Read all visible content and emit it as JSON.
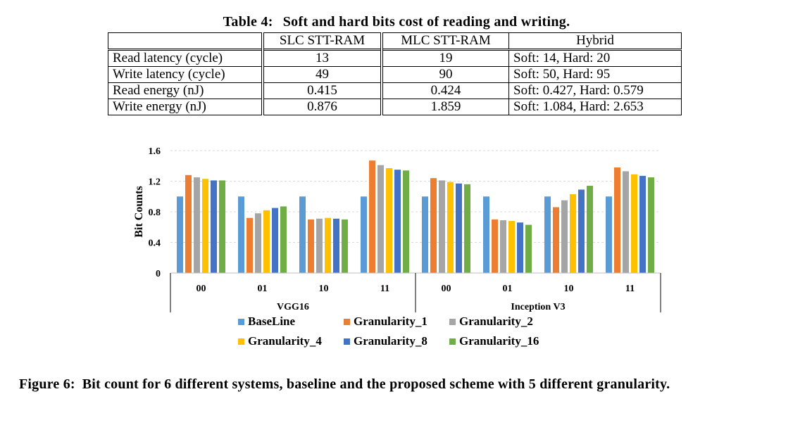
{
  "table": {
    "caption_number": "Table 4:",
    "caption_text": "Soft and hard bits cost of reading and writing.",
    "headers": [
      "",
      "SLC STT-RAM",
      "MLC STT-RAM",
      "Hybrid"
    ],
    "rows": [
      [
        "Read latency (cycle)",
        "13",
        "19",
        "Soft: 14, Hard: 20"
      ],
      [
        "Write latency (cycle)",
        "49",
        "90",
        "Soft: 50, Hard: 95"
      ],
      [
        "Read energy (nJ)",
        "0.415",
        "0.424",
        "Soft: 0.427, Hard: 0.579"
      ],
      [
        "Write energy (nJ)",
        "0.876",
        "1.859",
        "Soft: 1.084, Hard: 2.653"
      ]
    ]
  },
  "chart_data": {
    "type": "bar",
    "title": "",
    "xlabel": "",
    "ylabel": "Bit Counts",
    "ylim": [
      0,
      1.6
    ],
    "yticks": [
      "0",
      "0.4",
      "0.8",
      "1.2",
      "1.6"
    ],
    "groups": [
      {
        "name": "VGG16",
        "categories": [
          "00",
          "01",
          "10",
          "11"
        ]
      },
      {
        "name": "Inception V3",
        "categories": [
          "00",
          "01",
          "10",
          "11"
        ]
      }
    ],
    "categories": [
      "00",
      "01",
      "10",
      "11",
      "00",
      "01",
      "10",
      "11"
    ],
    "series": [
      {
        "name": "BaseLine",
        "color": "#5B9BD5",
        "values": [
          1.0,
          1.0,
          1.0,
          1.0,
          1.0,
          1.0,
          1.0,
          1.0
        ]
      },
      {
        "name": "Granularity_1",
        "color": "#ED7D31",
        "values": [
          1.28,
          0.72,
          0.7,
          1.47,
          1.24,
          0.7,
          0.86,
          1.38
        ]
      },
      {
        "name": "Granularity_2",
        "color": "#A5A5A5",
        "values": [
          1.25,
          0.78,
          0.71,
          1.41,
          1.21,
          0.69,
          0.95,
          1.33
        ]
      },
      {
        "name": "Granularity_4",
        "color": "#FFC000",
        "values": [
          1.23,
          0.82,
          0.72,
          1.37,
          1.19,
          0.68,
          1.03,
          1.29
        ]
      },
      {
        "name": "Granularity_8",
        "color": "#4472C4",
        "values": [
          1.21,
          0.85,
          0.71,
          1.35,
          1.17,
          0.66,
          1.09,
          1.27
        ]
      },
      {
        "name": "Granularity_16",
        "color": "#70AD47",
        "values": [
          1.21,
          0.87,
          0.7,
          1.34,
          1.16,
          0.63,
          1.14,
          1.25
        ]
      }
    ],
    "legend": "bottom"
  },
  "figure": {
    "caption_number": "Figure 6:",
    "caption_text": "Bit count for 6 different systems, baseline and the proposed scheme with 5 different granularity."
  }
}
